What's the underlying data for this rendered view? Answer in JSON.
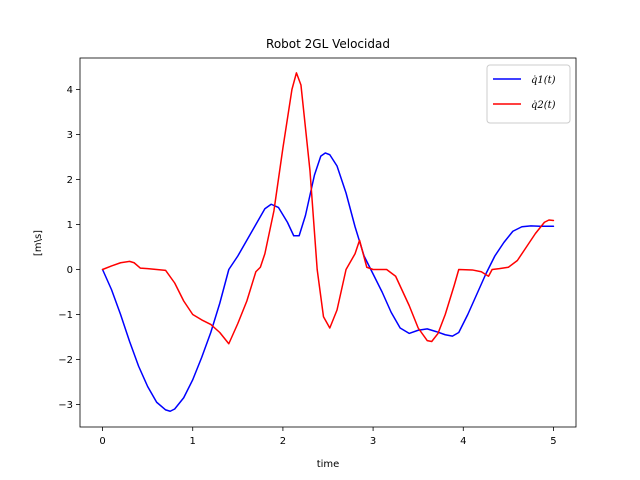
{
  "chart_data": {
    "type": "line",
    "title": "Robot 2GL  Velocidad",
    "xlabel": "time",
    "ylabel": "[m\\s]",
    "xlim": [
      -0.25,
      5.25
    ],
    "ylim": [
      -3.5,
      4.7
    ],
    "xticks": [
      0,
      1,
      2,
      3,
      4,
      5
    ],
    "yticks": [
      -3,
      -2,
      -1,
      0,
      1,
      2,
      3,
      4
    ],
    "grid": false,
    "legend_position": "top-right",
    "series": [
      {
        "name": "q̇1(t)",
        "color": "#0000ff",
        "points": [
          [
            0.0,
            0.0
          ],
          [
            0.1,
            -0.45
          ],
          [
            0.2,
            -1.0
          ],
          [
            0.3,
            -1.6
          ],
          [
            0.4,
            -2.15
          ],
          [
            0.5,
            -2.6
          ],
          [
            0.6,
            -2.95
          ],
          [
            0.7,
            -3.12
          ],
          [
            0.75,
            -3.15
          ],
          [
            0.8,
            -3.1
          ],
          [
            0.9,
            -2.85
          ],
          [
            1.0,
            -2.45
          ],
          [
            1.1,
            -1.95
          ],
          [
            1.2,
            -1.4
          ],
          [
            1.3,
            -0.75
          ],
          [
            1.4,
            0.0
          ],
          [
            1.5,
            0.3
          ],
          [
            1.6,
            0.65
          ],
          [
            1.7,
            1.0
          ],
          [
            1.8,
            1.35
          ],
          [
            1.87,
            1.45
          ],
          [
            1.95,
            1.38
          ],
          [
            2.05,
            1.05
          ],
          [
            2.12,
            0.75
          ],
          [
            2.18,
            0.75
          ],
          [
            2.25,
            1.2
          ],
          [
            2.35,
            2.1
          ],
          [
            2.42,
            2.52
          ],
          [
            2.47,
            2.59
          ],
          [
            2.52,
            2.55
          ],
          [
            2.6,
            2.3
          ],
          [
            2.7,
            1.7
          ],
          [
            2.8,
            0.95
          ],
          [
            2.9,
            0.3
          ],
          [
            3.0,
            -0.1
          ],
          [
            3.1,
            -0.5
          ],
          [
            3.2,
            -0.95
          ],
          [
            3.3,
            -1.3
          ],
          [
            3.4,
            -1.42
          ],
          [
            3.5,
            -1.35
          ],
          [
            3.6,
            -1.32
          ],
          [
            3.7,
            -1.38
          ],
          [
            3.8,
            -1.45
          ],
          [
            3.88,
            -1.48
          ],
          [
            3.95,
            -1.4
          ],
          [
            4.05,
            -1.0
          ],
          [
            4.15,
            -0.55
          ],
          [
            4.25,
            -0.1
          ],
          [
            4.35,
            0.3
          ],
          [
            4.45,
            0.6
          ],
          [
            4.55,
            0.85
          ],
          [
            4.65,
            0.95
          ],
          [
            4.75,
            0.97
          ],
          [
            4.85,
            0.96
          ],
          [
            5.0,
            0.96
          ]
        ]
      },
      {
        "name": "q̇2(t)",
        "color": "#ff0000",
        "points": [
          [
            0.0,
            0.0
          ],
          [
            0.1,
            0.08
          ],
          [
            0.2,
            0.15
          ],
          [
            0.3,
            0.18
          ],
          [
            0.35,
            0.15
          ],
          [
            0.42,
            0.03
          ],
          [
            0.5,
            0.02
          ],
          [
            0.6,
            0.0
          ],
          [
            0.7,
            -0.02
          ],
          [
            0.8,
            -0.3
          ],
          [
            0.9,
            -0.7
          ],
          [
            1.0,
            -1.0
          ],
          [
            1.1,
            -1.12
          ],
          [
            1.2,
            -1.22
          ],
          [
            1.3,
            -1.4
          ],
          [
            1.4,
            -1.65
          ],
          [
            1.5,
            -1.2
          ],
          [
            1.6,
            -0.7
          ],
          [
            1.7,
            -0.05
          ],
          [
            1.75,
            0.05
          ],
          [
            1.8,
            0.35
          ],
          [
            1.9,
            1.3
          ],
          [
            2.0,
            2.7
          ],
          [
            2.1,
            4.0
          ],
          [
            2.15,
            4.37
          ],
          [
            2.2,
            4.1
          ],
          [
            2.3,
            2.2
          ],
          [
            2.38,
            0.0
          ],
          [
            2.45,
            -1.05
          ],
          [
            2.52,
            -1.3
          ],
          [
            2.6,
            -0.9
          ],
          [
            2.7,
            0.0
          ],
          [
            2.8,
            0.35
          ],
          [
            2.85,
            0.65
          ],
          [
            2.93,
            0.05
          ],
          [
            3.0,
            0.0
          ],
          [
            3.15,
            0.0
          ],
          [
            3.25,
            -0.15
          ],
          [
            3.4,
            -0.8
          ],
          [
            3.5,
            -1.3
          ],
          [
            3.6,
            -1.58
          ],
          [
            3.65,
            -1.6
          ],
          [
            3.72,
            -1.42
          ],
          [
            3.8,
            -1.0
          ],
          [
            3.9,
            -0.35
          ],
          [
            3.95,
            0.0
          ],
          [
            4.1,
            -0.01
          ],
          [
            4.2,
            -0.05
          ],
          [
            4.28,
            -0.15
          ],
          [
            4.32,
            0.0
          ],
          [
            4.4,
            0.02
          ],
          [
            4.5,
            0.05
          ],
          [
            4.6,
            0.2
          ],
          [
            4.7,
            0.5
          ],
          [
            4.8,
            0.8
          ],
          [
            4.9,
            1.05
          ],
          [
            4.95,
            1.1
          ],
          [
            5.0,
            1.09
          ]
        ]
      }
    ]
  }
}
